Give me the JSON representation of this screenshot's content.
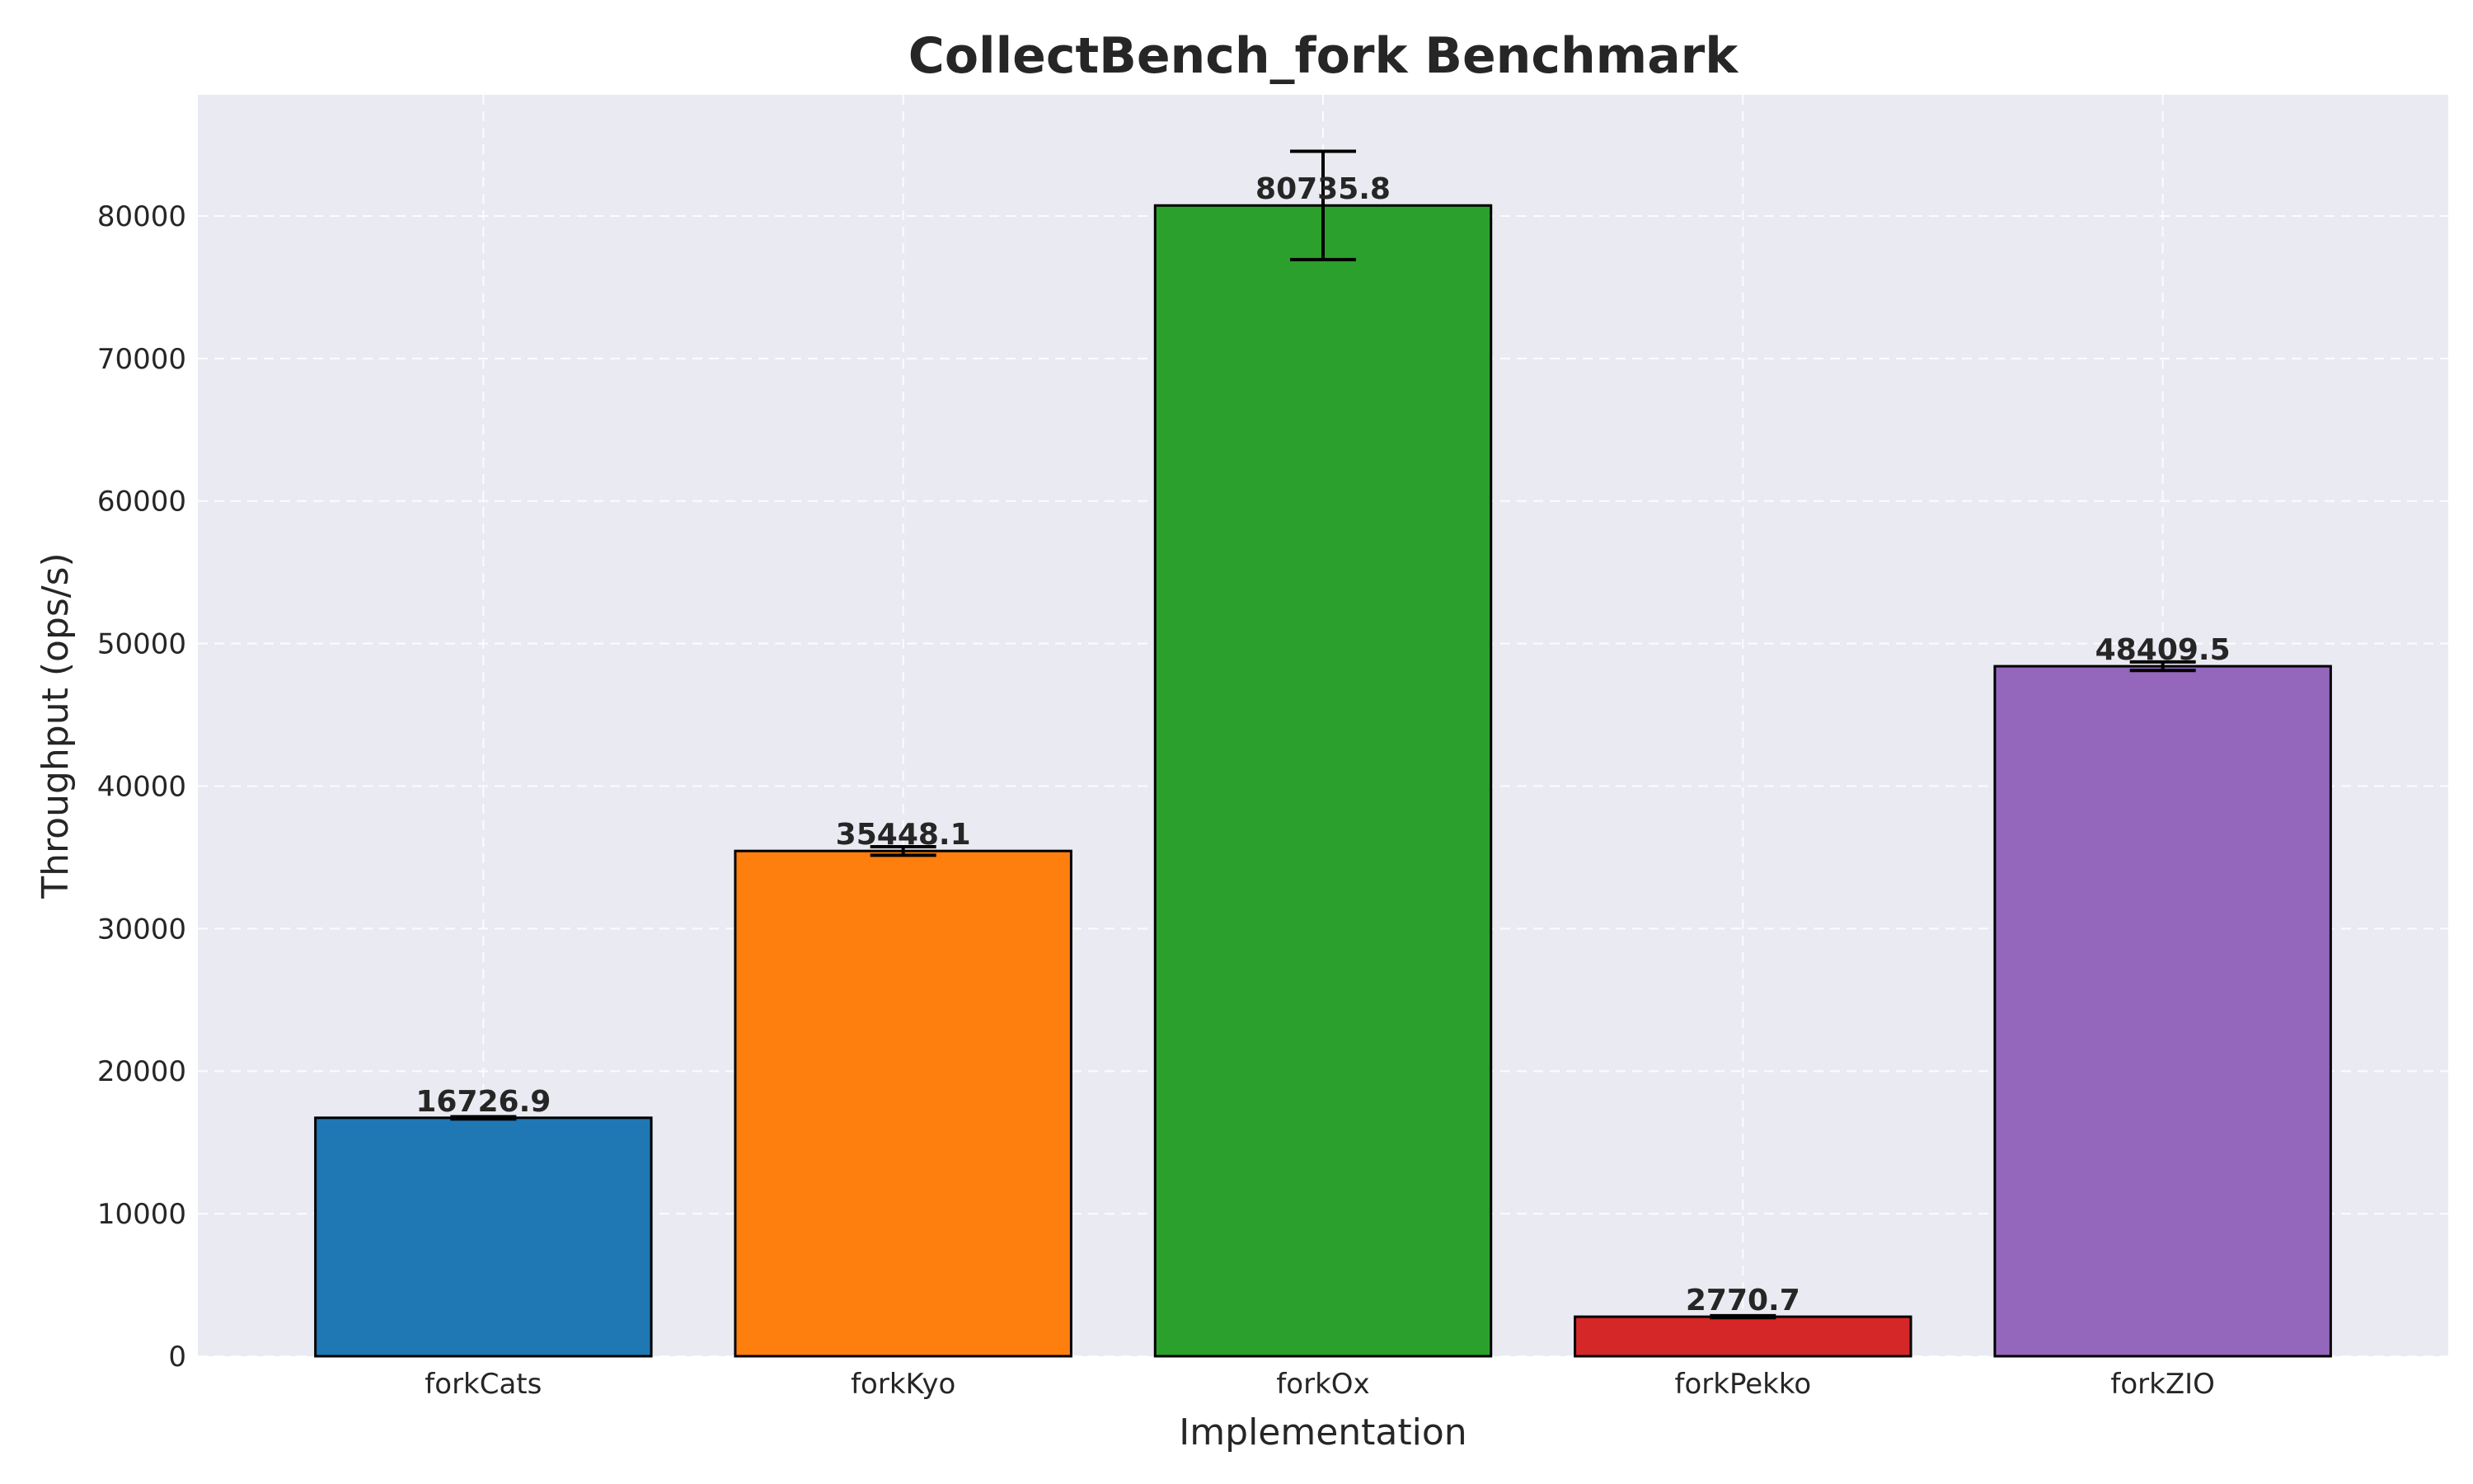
{
  "chart_data": {
    "type": "bar",
    "title": "CollectBench_fork Benchmark",
    "xlabel": "Implementation",
    "ylabel": "Throughput (ops/s)",
    "categories": [
      "forkCats",
      "forkKyo",
      "forkOx",
      "forkPekko",
      "forkZIO"
    ],
    "values": [
      16726.9,
      35448.1,
      80735.8,
      2770.7,
      48409.5
    ],
    "value_labels": [
      "16726.9",
      "35448.1",
      "80735.8",
      "2770.7",
      "48409.5"
    ],
    "errors": [
      80,
      300,
      3800,
      70,
      300
    ],
    "colors": [
      "#1f77b4",
      "#ff7f0e",
      "#2ca02c",
      "#d62728",
      "#9467bd"
    ],
    "ylim": [
      0,
      88500
    ],
    "yticks": [
      0,
      10000,
      20000,
      30000,
      40000,
      50000,
      60000,
      70000,
      80000
    ],
    "ytick_labels": [
      "0",
      "10000",
      "20000",
      "30000",
      "40000",
      "50000",
      "60000",
      "70000",
      "80000"
    ],
    "grid": true,
    "plot_background": "#eaeaf2",
    "grid_color": "#ffffff"
  }
}
